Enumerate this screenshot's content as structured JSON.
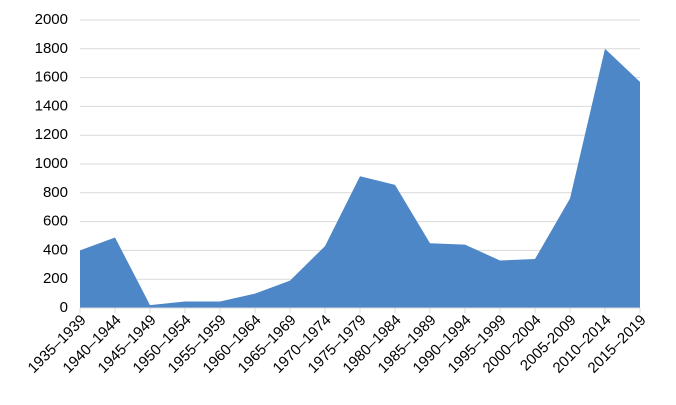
{
  "chart_data": {
    "type": "area",
    "categories": [
      "1935–1939",
      "1940–1944",
      "1945–1949",
      "1950–1954",
      "1955–1959",
      "1960–1964",
      "1965–1969",
      "1970–1974",
      "1975–1979",
      "1980–1984",
      "1985–1989",
      "1990–1994",
      "1995–1999",
      "2000–2004",
      "2005-2009",
      "2010–2014",
      "2015–2019"
    ],
    "values": [
      400,
      490,
      20,
      45,
      45,
      100,
      190,
      430,
      915,
      855,
      450,
      440,
      330,
      340,
      760,
      1800,
      1570
    ],
    "color": "#4d87c7",
    "ylim": [
      0,
      2000
    ],
    "yticks": [
      0,
      200,
      400,
      600,
      800,
      1000,
      1200,
      1400,
      1600,
      1800,
      2000
    ],
    "grid": true
  }
}
